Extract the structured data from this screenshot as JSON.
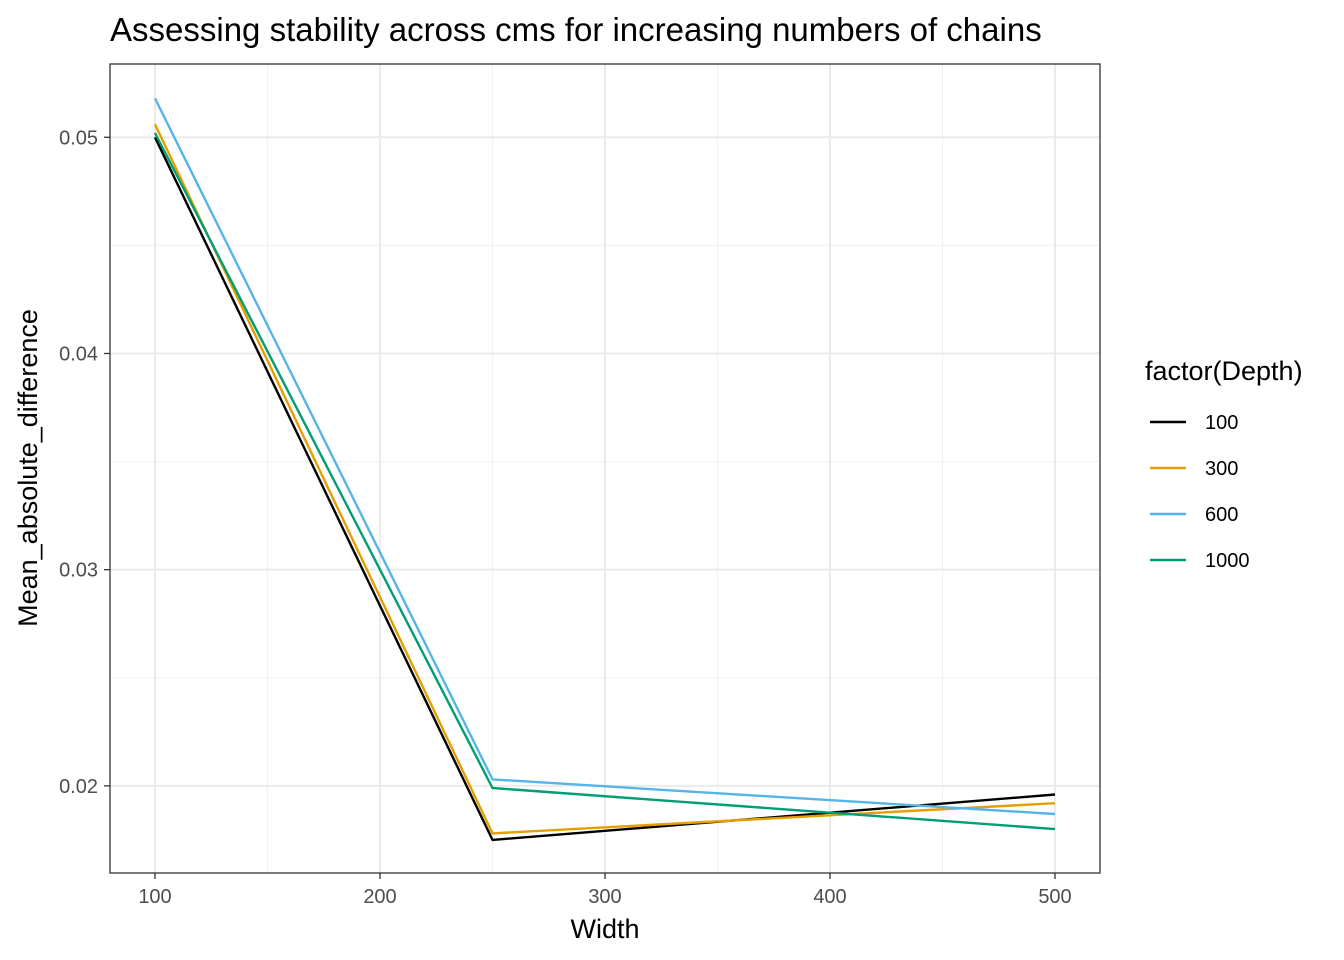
{
  "chart_data": {
    "type": "line",
    "title": "Assessing stability across cms for increasing numbers of chains",
    "xlabel": "Width",
    "ylabel": "Mean_absolute_difference",
    "x": [
      100,
      250,
      500
    ],
    "xlim": [
      80,
      520
    ],
    "ylim": [
      0.01597,
      0.05339
    ],
    "xticks": [
      100,
      200,
      300,
      400,
      500
    ],
    "xtick_labels": [
      "100",
      "200",
      "300",
      "400",
      "500"
    ],
    "yticks": [
      0.02,
      0.03,
      0.04,
      0.05
    ],
    "ytick_labels": [
      "0.02",
      "0.03",
      "0.04",
      "0.05"
    ],
    "grid": true,
    "legend": {
      "title": "factor(Depth)",
      "placement": "right"
    },
    "series": [
      {
        "name": "100",
        "color": "#000000",
        "values": [
          0.05,
          0.0175,
          0.0196
        ]
      },
      {
        "name": "300",
        "color": "#E69F00",
        "values": [
          0.0506,
          0.0178,
          0.0192
        ]
      },
      {
        "name": "600",
        "color": "#56B4E9",
        "values": [
          0.0518,
          0.0203,
          0.0187
        ]
      },
      {
        "name": "1000",
        "color": "#009E73",
        "values": [
          0.0502,
          0.0199,
          0.018
        ]
      }
    ]
  }
}
